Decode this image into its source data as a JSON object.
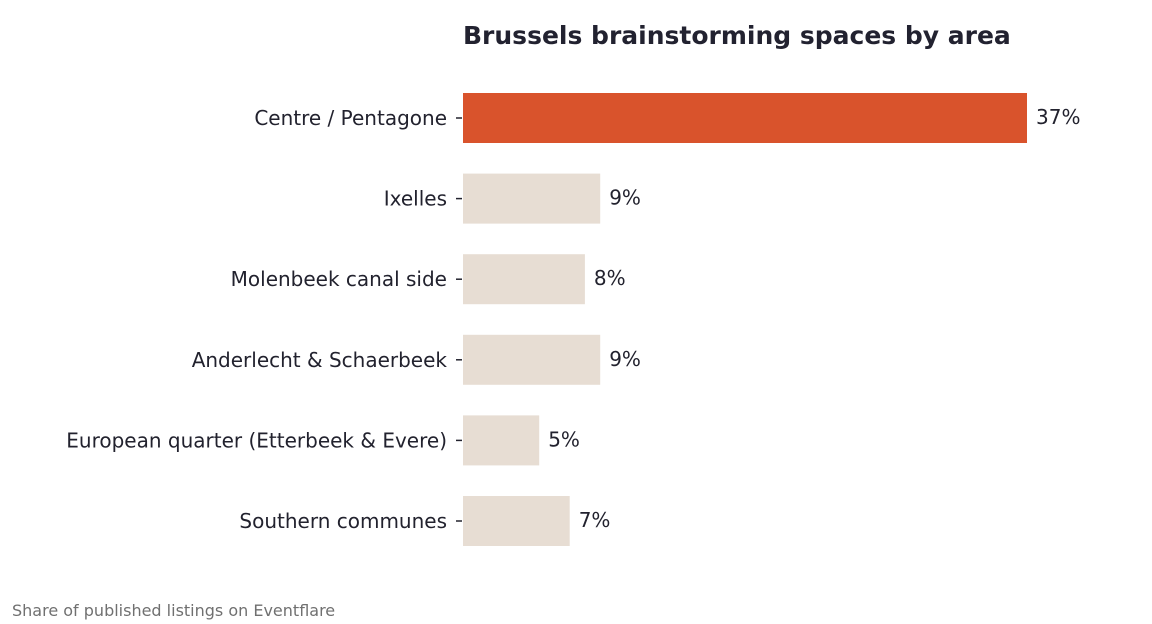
{
  "chart_data": {
    "type": "bar",
    "orientation": "horizontal",
    "title": "Brussels brainstorming spaces by area",
    "categories": [
      "Centre / Pentagone",
      "Ixelles",
      "Molenbeek canal side",
      "Anderlecht & Schaerbeek",
      "European quarter (Etterbeek & Evere)",
      "Southern communes"
    ],
    "values": [
      37,
      9,
      8,
      9,
      5,
      7
    ],
    "value_labels": [
      "37%",
      "9%",
      "8%",
      "9%",
      "5%",
      "7%"
    ],
    "unit": "%",
    "xlim": [
      0,
      37
    ],
    "grid": false,
    "highlight_category": "Centre / Pentagone",
    "colors": {
      "highlight": "#d9532c",
      "default": "#e7ddd3",
      "text": "#22222e",
      "muted": "#707070"
    }
  },
  "footer": {
    "note": "Share of published listings on Eventflare"
  }
}
